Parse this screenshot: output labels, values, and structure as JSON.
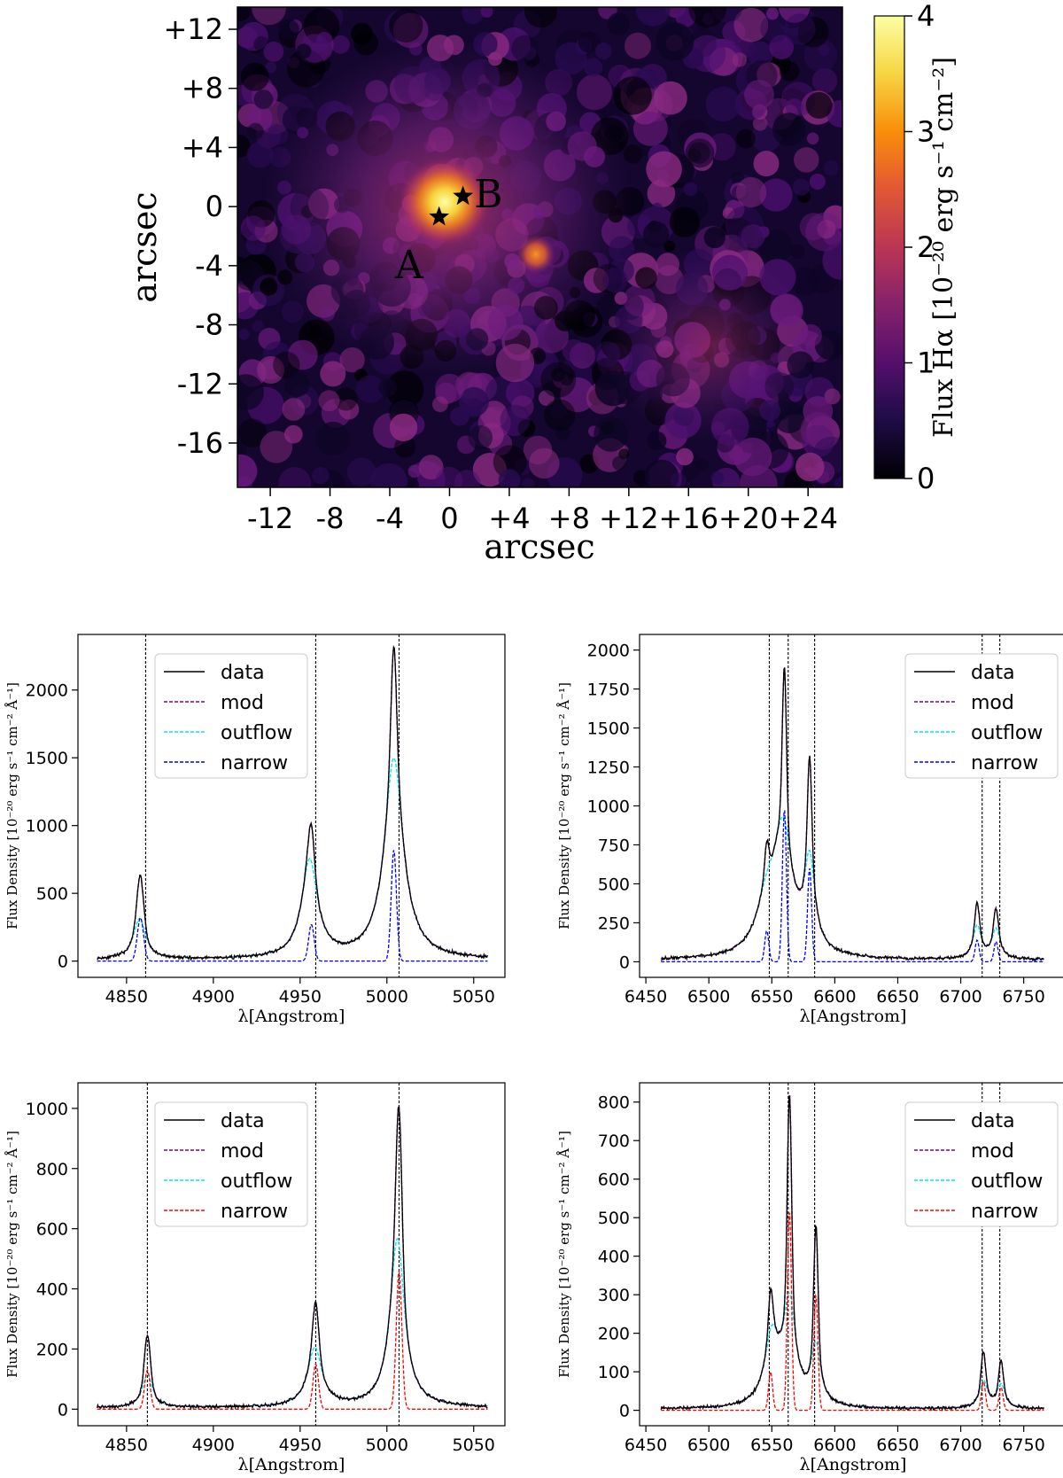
{
  "map": {
    "xlabel": "arcsec",
    "ylabel": "arcsec",
    "xlim": [
      -14.2,
      26.3
    ],
    "ylim": [
      -19.0,
      13.5
    ],
    "xticks": [
      -12,
      -8,
      -4,
      0,
      4,
      8,
      12,
      16,
      20,
      24
    ],
    "xtick_labels": [
      "-12",
      "-8",
      "-4",
      "0",
      "+4",
      "+8",
      "+12",
      "+16",
      "+20",
      "+24"
    ],
    "yticks": [
      12,
      8,
      4,
      0,
      -4,
      -8,
      -12,
      -16
    ],
    "ytick_labels": [
      "+12",
      "+8",
      "+4",
      "0",
      "-4",
      "-8",
      "-12",
      "-16"
    ],
    "markers": [
      {
        "label": "A",
        "x": -0.7,
        "y": -0.7,
        "label_x": -2.7,
        "label_y": -4.0
      },
      {
        "label": "B",
        "x": 0.9,
        "y": 0.7,
        "label_x": 2.6,
        "label_y": 0.8
      }
    ],
    "colorbar": {
      "label": "Flux Hα [10⁻²⁰ erg s⁻¹ cm⁻²]",
      "range": [
        0,
        4
      ],
      "ticks": [
        "0",
        "1",
        "2",
        "3",
        "4"
      ],
      "colormap": "inferno"
    }
  },
  "chart_data": [
    {
      "type": "line",
      "panel": "top-left",
      "xlabel": "λ[Angstrom]",
      "ylabel": "Flux Density [10⁻²⁰ erg s⁻¹ cm⁻² Å⁻¹]",
      "xlim": [
        4822,
        5068
      ],
      "ylim": [
        -120,
        2410
      ],
      "xticks": [
        "4850",
        "4900",
        "4950",
        "5000",
        "5050"
      ],
      "yticks": [
        "0",
        "500",
        "1000",
        "1500",
        "2000"
      ],
      "vlines": [
        4861,
        4959,
        5007
      ],
      "legend": {
        "position": "top-left",
        "entries": [
          "data",
          "mod",
          "outflow",
          "narrow"
        ]
      },
      "colors": {
        "data": "#000000",
        "mod": "#800080",
        "outflow": "#00e5ee",
        "narrow": "#0000ff"
      },
      "x_range": [
        4833,
        5058
      ],
      "continuum": 10,
      "lines": [
        {
          "center": 4857.5,
          "narrow_center": 4858,
          "outflow_amp": 300,
          "outflow_sigma": 4.2,
          "narrow_amp": 320,
          "narrow_sigma": 1.8
        },
        {
          "center": 4955.5,
          "narrow_center": 4956.5,
          "outflow_amp": 720,
          "outflow_sigma": 5.5,
          "narrow_amp": 270,
          "narrow_sigma": 1.6
        },
        {
          "center": 5004,
          "narrow_center": 5004,
          "outflow_amp": 1480,
          "outflow_sigma": 6.5,
          "narrow_amp": 820,
          "narrow_sigma": 1.5
        }
      ]
    },
    {
      "type": "line",
      "panel": "top-right",
      "xlabel": "λ[Angstrom]",
      "ylabel": "Flux Density [10⁻²⁰ erg s⁻¹ cm⁻² Å⁻¹]",
      "xlim": [
        6445,
        6784
      ],
      "ylim": [
        -100,
        2100
      ],
      "xticks": [
        "6450",
        "6500",
        "6550",
        "6600",
        "6650",
        "6700",
        "6750"
      ],
      "yticks": [
        "0",
        "250",
        "500",
        "750",
        "1000",
        "1250",
        "1500",
        "1750",
        "2000"
      ],
      "vlines": [
        6548,
        6563,
        6584,
        6717,
        6731
      ],
      "legend": {
        "position": "top-right",
        "entries": [
          "data",
          "mod",
          "outflow",
          "narrow"
        ]
      },
      "colors": {
        "data": "#000000",
        "mod": "#800080",
        "outflow": "#00e5ee",
        "narrow": "#0000ff"
      },
      "x_range": [
        6462,
        6766
      ],
      "continuum": 10,
      "lines": [
        {
          "center": 6546,
          "narrow_center": 6546,
          "outflow_amp": 300,
          "outflow_sigma": 10,
          "narrow_amp": 200,
          "narrow_sigma": 1.6
        },
        {
          "center": 6559,
          "narrow_center": 6560,
          "outflow_amp": 780,
          "outflow_sigma": 9,
          "narrow_amp": 980,
          "narrow_sigma": 1.6
        },
        {
          "center": 6580,
          "narrow_center": 6580,
          "outflow_amp": 560,
          "outflow_sigma": 5,
          "narrow_amp": 600,
          "narrow_sigma": 1.6
        },
        {
          "center": 6713,
          "narrow_center": 6713,
          "outflow_amp": 210,
          "outflow_sigma": 4,
          "narrow_amp": 140,
          "narrow_sigma": 1.6
        },
        {
          "center": 6728,
          "narrow_center": 6728,
          "outflow_amp": 190,
          "outflow_sigma": 4,
          "narrow_amp": 130,
          "narrow_sigma": 1.6
        }
      ]
    },
    {
      "type": "line",
      "panel": "bottom-left",
      "xlabel": "λ[Angstrom]",
      "ylabel": "Flux Density [10⁻²⁰ erg s⁻¹ cm⁻² Å⁻¹]",
      "xlim": [
        4822,
        5068
      ],
      "ylim": [
        -55,
        1085
      ],
      "xticks": [
        "4850",
        "4900",
        "4950",
        "5000",
        "5050"
      ],
      "yticks": [
        "0",
        "200",
        "400",
        "600",
        "800",
        "1000"
      ],
      "vlines": [
        4862,
        4959,
        5007
      ],
      "legend": {
        "position": "top-left",
        "entries": [
          "data",
          "mod",
          "outflow",
          "narrow"
        ]
      },
      "colors": {
        "data": "#000000",
        "mod": "#800080",
        "outflow": "#00e5ee",
        "narrow": "#ff0000"
      },
      "x_range": [
        4833,
        5058
      ],
      "continuum": 5,
      "lines": [
        {
          "center": 4862,
          "narrow_center": 4862,
          "outflow_amp": 110,
          "outflow_sigma": 3.5,
          "narrow_amp": 130,
          "narrow_sigma": 1.6
        },
        {
          "center": 4958.5,
          "narrow_center": 4959,
          "outflow_amp": 195,
          "outflow_sigma": 5,
          "narrow_amp": 150,
          "narrow_sigma": 1.6
        },
        {
          "center": 5006,
          "narrow_center": 5007,
          "outflow_amp": 560,
          "outflow_sigma": 5,
          "narrow_amp": 460,
          "narrow_sigma": 1.6
        }
      ]
    },
    {
      "type": "line",
      "panel": "bottom-right",
      "xlabel": "λ[Angstrom]",
      "ylabel": "Flux Density [10⁻²⁰ erg s⁻¹ cm⁻² Å⁻¹]",
      "xlim": [
        6445,
        6784
      ],
      "ylim": [
        -40,
        850
      ],
      "xticks": [
        "6450",
        "6500",
        "6550",
        "6600",
        "6650",
        "6700",
        "6750"
      ],
      "yticks": [
        "0",
        "100",
        "200",
        "300",
        "400",
        "500",
        "600",
        "700",
        "800"
      ],
      "vlines": [
        6548,
        6563,
        6584,
        6717,
        6731
      ],
      "legend": {
        "position": "top-right",
        "entries": [
          "data",
          "mod",
          "outflow",
          "narrow"
        ]
      },
      "colors": {
        "data": "#000000",
        "mod": "#800080",
        "outflow": "#00e5ee",
        "narrow": "#ff0000"
      },
      "x_range": [
        6462,
        6766
      ],
      "continuum": 3,
      "lines": [
        {
          "center": 6550,
          "narrow_center": 6549,
          "outflow_amp": 175,
          "outflow_sigma": 7,
          "narrow_amp": 100,
          "narrow_sigma": 1.6
        },
        {
          "center": 6564,
          "narrow_center": 6564,
          "outflow_amp": 260,
          "outflow_sigma": 6,
          "narrow_amp": 520,
          "narrow_sigma": 1.6
        },
        {
          "center": 6585,
          "narrow_center": 6585,
          "outflow_amp": 150,
          "outflow_sigma": 4.5,
          "narrow_amp": 300,
          "narrow_sigma": 1.6
        },
        {
          "center": 6718,
          "narrow_center": 6718,
          "outflow_amp": 70,
          "outflow_sigma": 4,
          "narrow_amp": 75,
          "narrow_sigma": 1.6
        },
        {
          "center": 6732,
          "narrow_center": 6732,
          "outflow_amp": 60,
          "outflow_sigma": 4,
          "narrow_amp": 60,
          "narrow_sigma": 1.6
        }
      ]
    }
  ]
}
